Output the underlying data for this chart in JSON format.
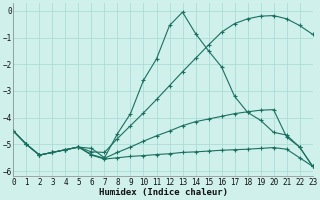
{
  "xlabel": "Humidex (Indice chaleur)",
  "bg_color": "#cff0eb",
  "grid_color": "#aaddd6",
  "line_color": "#1a7060",
  "xlim": [
    0,
    23
  ],
  "ylim": [
    -6.2,
    0.3
  ],
  "yticks": [
    0,
    -1,
    -2,
    -3,
    -4,
    -5,
    -6
  ],
  "xticks": [
    0,
    1,
    2,
    3,
    4,
    5,
    6,
    7,
    8,
    9,
    10,
    11,
    12,
    13,
    14,
    15,
    16,
    17,
    18,
    19,
    20,
    21,
    22,
    23
  ],
  "series": [
    {
      "x": [
        0,
        1,
        2,
        3,
        4,
        5,
        6,
        7,
        8,
        9,
        10,
        11,
        12,
        13,
        14,
        15,
        16,
        17,
        18,
        19,
        20,
        21,
        22,
        23
      ],
      "y": [
        -4.5,
        -5.0,
        -5.4,
        -5.3,
        -5.2,
        -5.1,
        -5.15,
        -5.5,
        -4.6,
        -3.85,
        -2.6,
        -1.8,
        -0.55,
        -0.05,
        -0.85,
        -1.5,
        -2.1,
        -3.2,
        -3.8,
        -4.1,
        -4.55,
        -4.65,
        -5.1,
        -5.82
      ]
    },
    {
      "x": [
        0,
        1,
        2,
        3,
        4,
        5,
        6,
        7,
        8,
        9,
        10,
        11,
        12,
        13,
        14,
        15,
        16,
        17,
        18,
        19,
        20,
        21,
        22,
        23
      ],
      "y": [
        -4.5,
        -5.0,
        -5.4,
        -5.3,
        -5.2,
        -5.1,
        -5.4,
        -5.55,
        -5.5,
        -5.45,
        -5.42,
        -5.38,
        -5.35,
        -5.3,
        -5.28,
        -5.25,
        -5.22,
        -5.2,
        -5.18,
        -5.15,
        -5.12,
        -5.18,
        -5.5,
        -5.82
      ]
    },
    {
      "x": [
        0,
        1,
        2,
        3,
        4,
        5,
        6,
        7,
        8,
        9,
        10,
        11,
        12,
        13,
        14,
        15,
        16,
        17,
        18,
        19,
        20,
        21,
        22,
        23
      ],
      "y": [
        -4.5,
        -5.0,
        -5.4,
        -5.3,
        -5.2,
        -5.1,
        -5.38,
        -5.52,
        -5.3,
        -5.1,
        -4.88,
        -4.68,
        -4.5,
        -4.3,
        -4.15,
        -4.05,
        -3.95,
        -3.85,
        -3.78,
        -3.72,
        -3.7,
        -4.72,
        -5.1,
        -5.82
      ]
    },
    {
      "x": [
        0,
        1,
        2,
        3,
        4,
        5,
        6,
        7,
        8,
        9,
        10,
        11,
        12,
        13,
        14,
        15,
        16,
        17,
        18,
        19,
        20,
        21,
        22,
        23
      ],
      "y": [
        -4.5,
        -5.0,
        -5.4,
        -5.3,
        -5.2,
        -5.1,
        -5.28,
        -5.3,
        -4.78,
        -4.3,
        -3.82,
        -3.32,
        -2.8,
        -2.28,
        -1.78,
        -1.28,
        -0.8,
        -0.48,
        -0.3,
        -0.2,
        -0.18,
        -0.3,
        -0.55,
        -0.88
      ]
    }
  ]
}
